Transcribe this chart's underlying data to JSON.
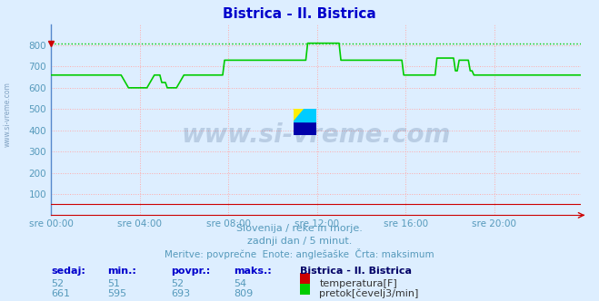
{
  "title": "Bistrica - Il. Bistrica",
  "title_color": "#0000cc",
  "bg_color": "#ddeeff",
  "plot_bg_color": "#ddeeff",
  "grid_color": "#ffaaaa",
  "ylim_min": 0,
  "ylim_max": 900,
  "yticks": [
    100,
    200,
    300,
    400,
    500,
    600,
    700,
    800
  ],
  "xtick_labels": [
    "sre 00:00",
    "sre 04:00",
    "sre 08:00",
    "sre 12:00",
    "sre 16:00",
    "sre 20:00"
  ],
  "xtick_positions": [
    0,
    48,
    96,
    144,
    192,
    240
  ],
  "total_points": 288,
  "watermark_text": "www.si-vreme.com",
  "watermark_color": "#1a3a6a",
  "watermark_alpha": 0.18,
  "subtitle1": "Slovenija / reke in morje.",
  "subtitle2": "zadnji dan / 5 minut.",
  "subtitle3": "Meritve: povprečne  Enote: anglešaške  Črta: maksimum",
  "subtitle_color": "#5599bb",
  "legend_title": "Bistrica - Il. Bistrica",
  "stats_headers": [
    "sedaj:",
    "min.:",
    "povpr.:",
    "maks.:"
  ],
  "stats_row1": [
    "52",
    "51",
    "52",
    "54"
  ],
  "stats_row2": [
    "661",
    "595",
    "693",
    "809"
  ],
  "temp_label": "temperatura[F]",
  "flow_label": "pretok[čevelj3/min]",
  "temp_color": "#cc0000",
  "flow_color": "#00cc00",
  "max_flow_value": 809,
  "temp_value": 52,
  "left_label": "www.si-vreme.com"
}
